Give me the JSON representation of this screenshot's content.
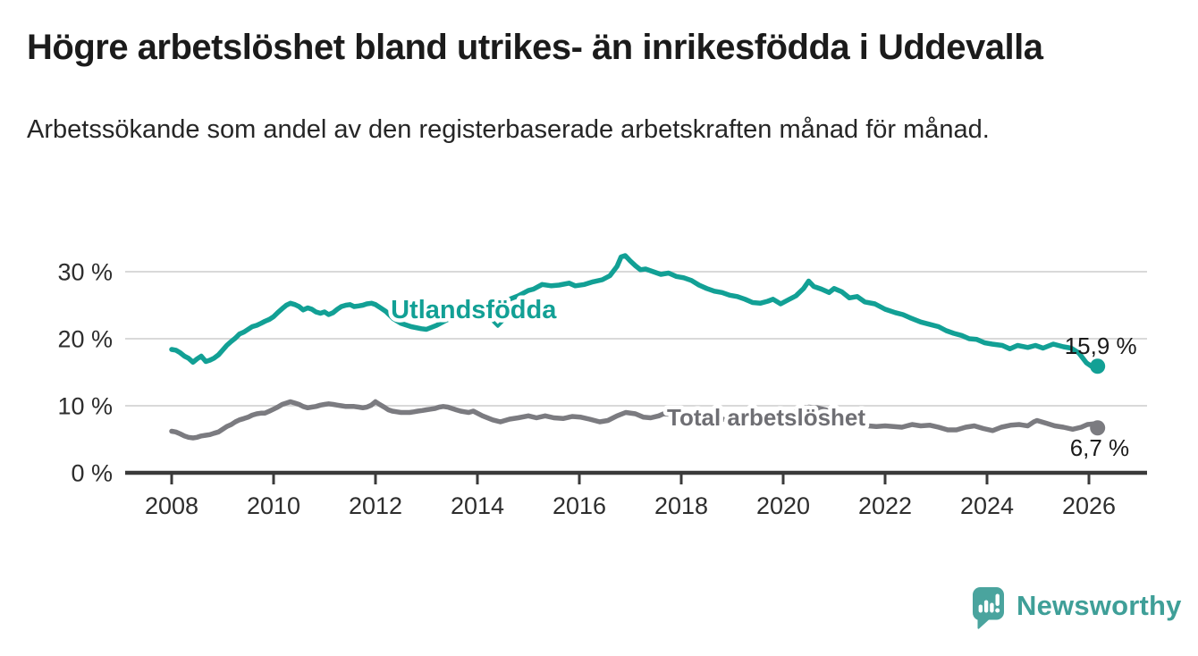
{
  "header": {
    "title": "Högre arbetslöshet bland utrikes- än inrikesfödda i Uddevalla",
    "subtitle": "Arbetssökande som andel av den registerbaserade arbetskraften månad för månad."
  },
  "branding": {
    "name": "Newsworthy",
    "icon": "speech-bubble-bar-chart-icon",
    "icon_color": "#4aa49e",
    "text_color": "#3f9f98"
  },
  "chart_data": {
    "type": "line",
    "title": "Högre arbetslöshet bland utrikes- än inrikesfödda i Uddevalla",
    "subtitle": "Arbetssökande som andel av den registerbaserade arbetskraften månad för månad.",
    "grid": true,
    "legend_position": "inline-on-line",
    "x_axis": {
      "ticks": [
        2008,
        2010,
        2012,
        2014,
        2016,
        2018,
        2020,
        2022,
        2024,
        2026
      ],
      "range": [
        2007.1,
        2027.15
      ],
      "unit": "year"
    },
    "y_axis": {
      "ticks": [
        {
          "value": 0,
          "label": "0 %"
        },
        {
          "value": 10,
          "label": "10 %"
        },
        {
          "value": 20,
          "label": "20 %"
        },
        {
          "value": 30,
          "label": "30 %"
        }
      ],
      "range": [
        0,
        34.5
      ],
      "unit": "percent"
    },
    "annotations": {
      "arrow": {
        "icon": "chevron-down-icon",
        "year": 2014.4,
        "pct": 21.87
      }
    },
    "series": [
      {
        "name": "Utlandsfödda",
        "color": "#12a095",
        "label_color": "#12a095",
        "end_label": "15,9 %",
        "end_value": 15.9,
        "label_anchor": {
          "year": 2012.3,
          "pct": 23.07
        },
        "points": [
          [
            2008.0,
            18.4
          ],
          [
            2008.08,
            18.3
          ],
          [
            2008.17,
            17.9
          ],
          [
            2008.25,
            17.4
          ],
          [
            2008.33,
            17.1
          ],
          [
            2008.42,
            16.5
          ],
          [
            2008.5,
            17.0
          ],
          [
            2008.58,
            17.4
          ],
          [
            2008.67,
            16.6
          ],
          [
            2008.75,
            16.8
          ],
          [
            2008.83,
            17.1
          ],
          [
            2008.92,
            17.6
          ],
          [
            2009.0,
            18.3
          ],
          [
            2009.08,
            19.0
          ],
          [
            2009.17,
            19.6
          ],
          [
            2009.25,
            20.1
          ],
          [
            2009.33,
            20.7
          ],
          [
            2009.42,
            21.0
          ],
          [
            2009.5,
            21.4
          ],
          [
            2009.58,
            21.8
          ],
          [
            2009.67,
            22.0
          ],
          [
            2009.75,
            22.3
          ],
          [
            2009.83,
            22.6
          ],
          [
            2009.92,
            22.9
          ],
          [
            2010.0,
            23.3
          ],
          [
            2010.08,
            23.9
          ],
          [
            2010.17,
            24.5
          ],
          [
            2010.25,
            25.0
          ],
          [
            2010.33,
            25.3
          ],
          [
            2010.42,
            25.1
          ],
          [
            2010.5,
            24.8
          ],
          [
            2010.58,
            24.3
          ],
          [
            2010.67,
            24.6
          ],
          [
            2010.75,
            24.4
          ],
          [
            2010.83,
            24.0
          ],
          [
            2010.92,
            23.8
          ],
          [
            2011.0,
            24.0
          ],
          [
            2011.08,
            23.6
          ],
          [
            2011.17,
            23.9
          ],
          [
            2011.25,
            24.4
          ],
          [
            2011.33,
            24.8
          ],
          [
            2011.42,
            25.0
          ],
          [
            2011.5,
            25.1
          ],
          [
            2011.58,
            24.8
          ],
          [
            2011.67,
            24.9
          ],
          [
            2011.75,
            25.0
          ],
          [
            2011.83,
            25.2
          ],
          [
            2011.92,
            25.3
          ],
          [
            2012.0,
            25.1
          ],
          [
            2012.1,
            24.6
          ],
          [
            2012.2,
            24.1
          ],
          [
            2012.35,
            23.0
          ],
          [
            2012.5,
            22.3
          ],
          [
            2012.7,
            21.8
          ],
          [
            2012.9,
            21.5
          ],
          [
            2013.0,
            21.4
          ],
          [
            2013.2,
            22.0
          ],
          [
            2013.4,
            22.8
          ],
          [
            2013.6,
            23.4
          ],
          [
            2013.8,
            24.0
          ],
          [
            2014.0,
            24.6
          ],
          [
            2014.2,
            25.1
          ],
          [
            2014.4,
            25.3
          ],
          [
            2014.6,
            25.8
          ],
          [
            2014.8,
            26.4
          ],
          [
            2015.0,
            27.2
          ],
          [
            2015.1,
            27.4
          ],
          [
            2015.27,
            28.1
          ],
          [
            2015.45,
            27.9
          ],
          [
            2015.6,
            28.0
          ],
          [
            2015.8,
            28.3
          ],
          [
            2015.92,
            27.9
          ],
          [
            2016.1,
            28.1
          ],
          [
            2016.27,
            28.5
          ],
          [
            2016.45,
            28.8
          ],
          [
            2016.6,
            29.4
          ],
          [
            2016.74,
            30.8
          ],
          [
            2016.82,
            32.2
          ],
          [
            2016.9,
            32.4
          ],
          [
            2017.0,
            31.6
          ],
          [
            2017.1,
            30.9
          ],
          [
            2017.2,
            30.3
          ],
          [
            2017.3,
            30.4
          ],
          [
            2017.45,
            30.0
          ],
          [
            2017.6,
            29.6
          ],
          [
            2017.75,
            29.8
          ],
          [
            2017.9,
            29.3
          ],
          [
            2018.05,
            29.1
          ],
          [
            2018.2,
            28.7
          ],
          [
            2018.35,
            28.0
          ],
          [
            2018.5,
            27.5
          ],
          [
            2018.65,
            27.1
          ],
          [
            2018.8,
            26.9
          ],
          [
            2018.95,
            26.5
          ],
          [
            2019.1,
            26.3
          ],
          [
            2019.25,
            25.9
          ],
          [
            2019.4,
            25.4
          ],
          [
            2019.55,
            25.3
          ],
          [
            2019.7,
            25.6
          ],
          [
            2019.8,
            25.9
          ],
          [
            2019.95,
            25.2
          ],
          [
            2020.1,
            25.8
          ],
          [
            2020.25,
            26.4
          ],
          [
            2020.4,
            27.5
          ],
          [
            2020.5,
            28.6
          ],
          [
            2020.6,
            27.8
          ],
          [
            2020.75,
            27.4
          ],
          [
            2020.9,
            26.9
          ],
          [
            2021.0,
            27.5
          ],
          [
            2021.15,
            27.0
          ],
          [
            2021.3,
            26.1
          ],
          [
            2021.45,
            26.3
          ],
          [
            2021.6,
            25.5
          ],
          [
            2021.8,
            25.2
          ],
          [
            2022.0,
            24.4
          ],
          [
            2022.2,
            23.9
          ],
          [
            2022.35,
            23.6
          ],
          [
            2022.5,
            23.1
          ],
          [
            2022.7,
            22.5
          ],
          [
            2022.9,
            22.1
          ],
          [
            2023.05,
            21.8
          ],
          [
            2023.2,
            21.2
          ],
          [
            2023.35,
            20.8
          ],
          [
            2023.5,
            20.5
          ],
          [
            2023.65,
            20.0
          ],
          [
            2023.8,
            19.9
          ],
          [
            2023.95,
            19.4
          ],
          [
            2024.1,
            19.2
          ],
          [
            2024.3,
            19.0
          ],
          [
            2024.45,
            18.5
          ],
          [
            2024.6,
            19.0
          ],
          [
            2024.8,
            18.7
          ],
          [
            2024.95,
            19.0
          ],
          [
            2025.1,
            18.6
          ],
          [
            2025.3,
            19.2
          ],
          [
            2025.5,
            18.8
          ],
          [
            2025.65,
            18.6
          ],
          [
            2025.8,
            17.9
          ],
          [
            2025.95,
            16.4
          ],
          [
            2026.05,
            15.9
          ],
          [
            2026.12,
            16.2
          ],
          [
            2026.17,
            15.9
          ]
        ]
      },
      {
        "name": "Total arbetslöshet",
        "color": "#7b7b80",
        "label_color": "#6f6f74",
        "end_label": "6,7 %",
        "end_value": 6.7,
        "label_anchor": {
          "year": 2017.72,
          "pct": 7.07
        },
        "points": [
          [
            2008.0,
            6.2
          ],
          [
            2008.08,
            6.1
          ],
          [
            2008.17,
            5.8
          ],
          [
            2008.25,
            5.5
          ],
          [
            2008.33,
            5.3
          ],
          [
            2008.42,
            5.2
          ],
          [
            2008.5,
            5.3
          ],
          [
            2008.58,
            5.5
          ],
          [
            2008.67,
            5.6
          ],
          [
            2008.75,
            5.7
          ],
          [
            2008.83,
            5.9
          ],
          [
            2008.92,
            6.1
          ],
          [
            2009.0,
            6.5
          ],
          [
            2009.08,
            6.9
          ],
          [
            2009.17,
            7.2
          ],
          [
            2009.25,
            7.6
          ],
          [
            2009.33,
            7.9
          ],
          [
            2009.42,
            8.1
          ],
          [
            2009.5,
            8.3
          ],
          [
            2009.58,
            8.6
          ],
          [
            2009.67,
            8.8
          ],
          [
            2009.75,
            8.9
          ],
          [
            2009.83,
            8.9
          ],
          [
            2009.92,
            9.2
          ],
          [
            2010.0,
            9.5
          ],
          [
            2010.08,
            9.8
          ],
          [
            2010.17,
            10.2
          ],
          [
            2010.25,
            10.4
          ],
          [
            2010.33,
            10.6
          ],
          [
            2010.42,
            10.4
          ],
          [
            2010.5,
            10.2
          ],
          [
            2010.58,
            9.9
          ],
          [
            2010.67,
            9.7
          ],
          [
            2010.75,
            9.8
          ],
          [
            2010.83,
            9.9
          ],
          [
            2010.92,
            10.1
          ],
          [
            2011.0,
            10.2
          ],
          [
            2011.08,
            10.3
          ],
          [
            2011.17,
            10.2
          ],
          [
            2011.25,
            10.1
          ],
          [
            2011.33,
            10.0
          ],
          [
            2011.42,
            9.9
          ],
          [
            2011.5,
            9.9
          ],
          [
            2011.58,
            9.9
          ],
          [
            2011.67,
            9.8
          ],
          [
            2011.75,
            9.7
          ],
          [
            2011.83,
            9.8
          ],
          [
            2011.92,
            10.1
          ],
          [
            2012.0,
            10.6
          ],
          [
            2012.08,
            10.2
          ],
          [
            2012.17,
            9.8
          ],
          [
            2012.25,
            9.4
          ],
          [
            2012.33,
            9.2
          ],
          [
            2012.42,
            9.1
          ],
          [
            2012.5,
            9.0
          ],
          [
            2012.58,
            9.0
          ],
          [
            2012.67,
            9.0
          ],
          [
            2012.75,
            9.1
          ],
          [
            2012.83,
            9.2
          ],
          [
            2012.92,
            9.3
          ],
          [
            2013.0,
            9.4
          ],
          [
            2013.08,
            9.5
          ],
          [
            2013.17,
            9.6
          ],
          [
            2013.25,
            9.8
          ],
          [
            2013.33,
            9.9
          ],
          [
            2013.42,
            9.8
          ],
          [
            2013.5,
            9.6
          ],
          [
            2013.58,
            9.4
          ],
          [
            2013.67,
            9.2
          ],
          [
            2013.75,
            9.1
          ],
          [
            2013.83,
            9.0
          ],
          [
            2013.92,
            9.2
          ],
          [
            2014.1,
            8.5
          ],
          [
            2014.3,
            7.9
          ],
          [
            2014.45,
            7.6
          ],
          [
            2014.63,
            8.0
          ],
          [
            2014.8,
            8.2
          ],
          [
            2015.0,
            8.5
          ],
          [
            2015.16,
            8.2
          ],
          [
            2015.33,
            8.5
          ],
          [
            2015.5,
            8.2
          ],
          [
            2015.68,
            8.1
          ],
          [
            2015.86,
            8.4
          ],
          [
            2016.03,
            8.3
          ],
          [
            2016.2,
            8.0
          ],
          [
            2016.4,
            7.6
          ],
          [
            2016.56,
            7.8
          ],
          [
            2016.74,
            8.5
          ],
          [
            2016.91,
            9.0
          ],
          [
            2017.1,
            8.8
          ],
          [
            2017.26,
            8.3
          ],
          [
            2017.4,
            8.2
          ],
          [
            2017.56,
            8.5
          ],
          [
            2017.65,
            8.8
          ],
          [
            2017.8,
            8.7
          ],
          [
            2018.0,
            8.5
          ],
          [
            2018.2,
            8.3
          ],
          [
            2018.4,
            8.2
          ],
          [
            2018.6,
            8.1
          ],
          [
            2018.8,
            8.0
          ],
          [
            2019.0,
            7.9
          ],
          [
            2019.2,
            7.8
          ],
          [
            2019.4,
            7.7
          ],
          [
            2019.6,
            7.7
          ],
          [
            2019.8,
            7.8
          ],
          [
            2020.0,
            8.1
          ],
          [
            2020.17,
            8.8
          ],
          [
            2020.33,
            9.5
          ],
          [
            2020.5,
            9.8
          ],
          [
            2020.67,
            9.7
          ],
          [
            2020.83,
            9.4
          ],
          [
            2021.0,
            8.9
          ],
          [
            2021.17,
            8.4
          ],
          [
            2021.33,
            7.9
          ],
          [
            2021.5,
            7.4
          ],
          [
            2021.67,
            7.0
          ],
          [
            2021.83,
            6.9
          ],
          [
            2022.0,
            7.0
          ],
          [
            2022.17,
            6.9
          ],
          [
            2022.33,
            6.8
          ],
          [
            2022.53,
            7.2
          ],
          [
            2022.7,
            7.0
          ],
          [
            2022.88,
            7.1
          ],
          [
            2023.05,
            6.8
          ],
          [
            2023.23,
            6.4
          ],
          [
            2023.4,
            6.4
          ],
          [
            2023.58,
            6.8
          ],
          [
            2023.75,
            7.0
          ],
          [
            2023.93,
            6.6
          ],
          [
            2024.11,
            6.3
          ],
          [
            2024.28,
            6.8
          ],
          [
            2024.46,
            7.1
          ],
          [
            2024.63,
            7.2
          ],
          [
            2024.8,
            7.0
          ],
          [
            2024.92,
            7.6
          ],
          [
            2024.98,
            7.8
          ],
          [
            2025.16,
            7.4
          ],
          [
            2025.33,
            7.0
          ],
          [
            2025.5,
            6.8
          ],
          [
            2025.68,
            6.5
          ],
          [
            2025.85,
            6.8
          ],
          [
            2025.97,
            7.2
          ],
          [
            2026.08,
            7.3
          ],
          [
            2026.17,
            6.7
          ]
        ]
      }
    ]
  }
}
